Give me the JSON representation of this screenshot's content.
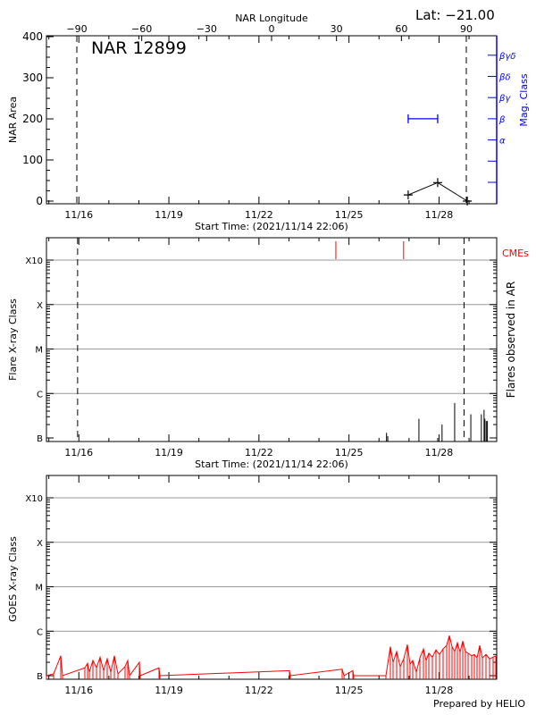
{
  "header": {
    "lat_label": "Lat: −21.00",
    "region_title": "NAR 12899",
    "footer": "Prepared by HELIO"
  },
  "colors": {
    "axis": "#000000",
    "mag_class": "#0000ff",
    "cme": "#ff0000",
    "goes": "#ff0000",
    "grid": "#999999"
  },
  "time_axis": {
    "start": "2021/11/14 22:06",
    "end": "2021/11/29 22:06",
    "label": "Start Time: (2021/11/14 22:06)",
    "ticks": [
      "11/16",
      "11/19",
      "11/22",
      "11/25",
      "11/28"
    ]
  },
  "chart_data": [
    {
      "type": "line",
      "ylabel": "NAR Area",
      "ylim": [
        0,
        400
      ],
      "yticks": [
        "0",
        "100",
        "200",
        "300",
        "400"
      ],
      "top_axis": {
        "label": "NAR Longitude",
        "ticks": [
          "-90",
          "-60",
          "-30",
          "0",
          "30",
          "60",
          "90"
        ],
        "range": [
          -90,
          90
        ]
      },
      "limb_lines_longitude": [
        -90,
        90
      ],
      "area_points": [
        {
          "time": "11/26 23:20",
          "area": 15
        },
        {
          "time": "11/27 22:55",
          "area": 45
        },
        {
          "time": "11/28 22:35",
          "area": 0
        }
      ],
      "right_axis": {
        "label": "Mag. Class",
        "classes": [
          "",
          "",
          "α",
          "β",
          "βγ",
          "βδ",
          "βγδ"
        ]
      },
      "mag_class_segments": [
        {
          "start": "11/26 23:20",
          "end": "11/27 22:55",
          "class": "β"
        }
      ]
    },
    {
      "type": "bar",
      "ylabel": "Flare X-ray Class",
      "right_label": "Flares observed in AR",
      "cme_label": "CMEs",
      "yscale": "log",
      "yticks": [
        "B",
        "C",
        "M",
        "X",
        "X10"
      ],
      "grid": true,
      "limb_lines_time": [
        "11/15 23:00",
        "11/28 20:00"
      ],
      "cmes": [
        "11/24 13:30",
        "11/26 19:40"
      ],
      "flares": [
        {
          "time": "11/26 06:00",
          "class": "B1.3"
        },
        {
          "time": "11/26 07:00",
          "class": "B1.1"
        },
        {
          "time": "11/27 07:55",
          "class": "B2.7"
        },
        {
          "time": "11/27 22:55",
          "class": "B1.0"
        },
        {
          "time": "11/28 02:25",
          "class": "B2.0"
        },
        {
          "time": "11/28 12:30",
          "class": "B6.1"
        },
        {
          "time": "11/29 01:25",
          "class": "B3.4"
        },
        {
          "time": "11/29 09:50",
          "class": "B3.4"
        },
        {
          "time": "11/29 12:00",
          "class": "B4.3"
        },
        {
          "time": "11/29 12:40",
          "class": "B2.7"
        },
        {
          "time": "11/29 13:45",
          "class": "B2.4"
        },
        {
          "time": "11/29 14:40",
          "class": "B2.4"
        }
      ]
    },
    {
      "type": "line",
      "ylabel": "GOES X-ray Class",
      "yscale": "log",
      "yticks": [
        "B",
        "C",
        "M",
        "X",
        "X10"
      ],
      "grid": true,
      "flux_series": [
        [
          "11/14 22:06",
          1e-07
        ],
        [
          "11/15 03:49",
          1.1e-07
        ],
        [
          "11/15 09:32",
          2.8e-07
        ],
        [
          "11/15 10:57",
          1e-07
        ],
        [
          "11/16 04:49",
          1.5e-07
        ],
        [
          "11/16 06:57",
          1.9e-07
        ],
        [
          "11/16 08:23",
          1.2e-07
        ],
        [
          "11/16 11:15",
          2.2e-07
        ],
        [
          "11/16 14:06",
          1.5e-07
        ],
        [
          "11/16 16:58",
          2.6e-07
        ],
        [
          "11/16 19:49",
          1.3e-07
        ],
        [
          "11/16 22:40",
          2.4e-07
        ],
        [
          "11/17 01:32",
          1.2e-07
        ],
        [
          "11/17 04:23",
          2.8e-07
        ],
        [
          "11/17 07:15",
          1.1e-07
        ],
        [
          "11/17 12:57",
          1.6e-07
        ],
        [
          "11/17 15:06",
          2.2e-07
        ],
        [
          "11/17 16:32",
          1e-07
        ],
        [
          "11/18 00:23",
          2e-07
        ],
        [
          "11/18 01:06",
          1e-07
        ],
        [
          "11/18 16:06",
          1.5e-07
        ],
        [
          "11/18 16:49",
          1e-07
        ],
        [
          "11/23 00:23",
          1.3e-07
        ],
        [
          "11/23 01:06",
          1e-07
        ],
        [
          "11/24 18:32",
          1.4e-07
        ],
        [
          "11/24 20:00",
          1e-07
        ],
        [
          "11/25 03:06",
          1.3e-07
        ],
        [
          "11/25 03:49",
          1e-07
        ],
        [
          "11/26 05:32",
          1e-07
        ],
        [
          "11/26 09:06",
          4.5e-07
        ],
        [
          "11/26 11:15",
          2e-07
        ],
        [
          "11/26 14:06",
          3.5e-07
        ],
        [
          "11/26 16:58",
          1.6e-07
        ],
        [
          "11/26 19:49",
          2.4e-07
        ],
        [
          "11/26 22:40",
          5e-07
        ],
        [
          "11/27 00:49",
          1.8e-07
        ],
        [
          "11/27 02:57",
          2.2e-07
        ],
        [
          "11/27 05:49",
          1.2e-07
        ],
        [
          "11/27 08:40",
          2.5e-07
        ],
        [
          "11/27 11:32",
          4e-07
        ],
        [
          "11/27 13:40",
          2.2e-07
        ],
        [
          "11/27 15:49",
          3.2e-07
        ],
        [
          "11/27 18:40",
          2.6e-07
        ],
        [
          "11/27 21:32",
          3.8e-07
        ],
        [
          "11/28 00:23",
          3e-07
        ],
        [
          "11/28 03:15",
          4e-07
        ],
        [
          "11/28 06:06",
          4.8e-07
        ],
        [
          "11/28 08:15",
          8e-07
        ],
        [
          "11/28 10:23",
          4.5e-07
        ],
        [
          "11/28 12:32",
          3.5e-07
        ],
        [
          "11/28 14:40",
          5.5e-07
        ],
        [
          "11/28 16:49",
          3.4e-07
        ],
        [
          "11/28 18:58",
          6e-07
        ],
        [
          "11/28 21:06",
          3.5e-07
        ],
        [
          "11/28 23:15",
          3.2e-07
        ],
        [
          "11/29 02:06",
          2.8e-07
        ],
        [
          "11/29 04:15",
          3e-07
        ],
        [
          "11/29 06:23",
          2.5e-07
        ],
        [
          "11/29 08:32",
          4.8e-07
        ],
        [
          "11/29 10:40",
          2.5e-07
        ],
        [
          "11/29 13:32",
          3e-07
        ],
        [
          "11/29 16:23",
          2.4e-07
        ],
        [
          "11/29 19:15",
          2.6e-07
        ],
        [
          "11/29 21:24",
          2.8e-07
        ]
      ]
    }
  ]
}
